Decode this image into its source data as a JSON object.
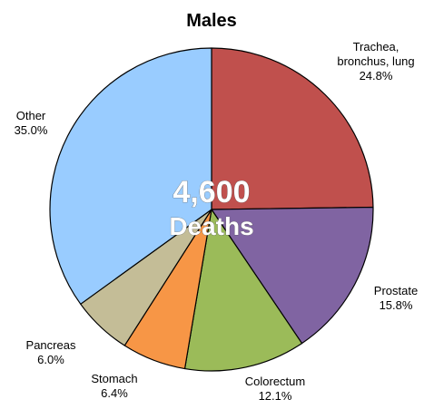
{
  "chart_data": {
    "type": "pie",
    "title": "Males",
    "center_value": "4,600",
    "center_caption": "Deaths",
    "slices": [
      {
        "label_lines": [
          "Trachea,",
          "bronchus, lung"
        ],
        "value_label": "24.8%",
        "value": 24.8,
        "color": "#c0504d"
      },
      {
        "label_lines": [
          "Prostate"
        ],
        "value_label": "15.8%",
        "value": 15.8,
        "color": "#8064a2"
      },
      {
        "label_lines": [
          "Colorectum"
        ],
        "value_label": "12.1%",
        "value": 12.1,
        "color": "#9bbb59"
      },
      {
        "label_lines": [
          "Stomach"
        ],
        "value_label": "6.4%",
        "value": 6.4,
        "color": "#f79646"
      },
      {
        "label_lines": [
          "Pancreas"
        ],
        "value_label": "6.0%",
        "value": 6.0,
        "color": "#c4bd97"
      },
      {
        "label_lines": [
          "Other"
        ],
        "value_label": "35.0%",
        "value": 35.0,
        "color": "#99ccff"
      }
    ]
  }
}
